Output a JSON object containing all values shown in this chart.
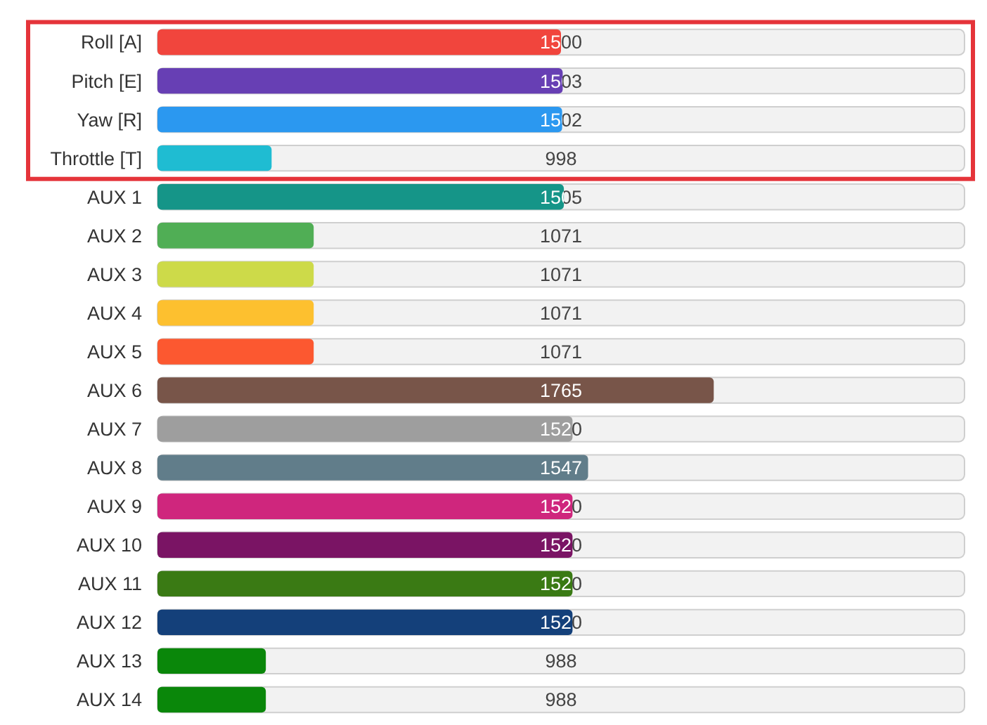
{
  "chart_data": {
    "type": "bar",
    "orientation": "horizontal",
    "categories": [
      "Roll [A]",
      "Pitch [E]",
      "Yaw [R]",
      "Throttle [T]",
      "AUX 1",
      "AUX 2",
      "AUX 3",
      "AUX 4",
      "AUX 5",
      "AUX 6",
      "AUX 7",
      "AUX 8",
      "AUX 9",
      "AUX 10",
      "AUX 11",
      "AUX 12",
      "AUX 13",
      "AUX 14"
    ],
    "values": [
      1500,
      1503,
      1502,
      998,
      1505,
      1071,
      1071,
      1071,
      1071,
      1765,
      1520,
      1547,
      1520,
      1520,
      1520,
      1520,
      988,
      988
    ],
    "colors": [
      "#f1453d",
      "#673fb4",
      "#2b98f0",
      "#1fbcd2",
      "#159588",
      "#50ae55",
      "#cdda49",
      "#fdc02f",
      "#fc5830",
      "#785549",
      "#9e9e9e",
      "#617d8a",
      "#cf267d",
      "#7a1464",
      "#3a7a14",
      "#14407a",
      "#0a870a",
      "#0a870a"
    ],
    "xlim": [
      800,
      2200
    ],
    "tick_labels": "y",
    "data_labels": true
  }
}
